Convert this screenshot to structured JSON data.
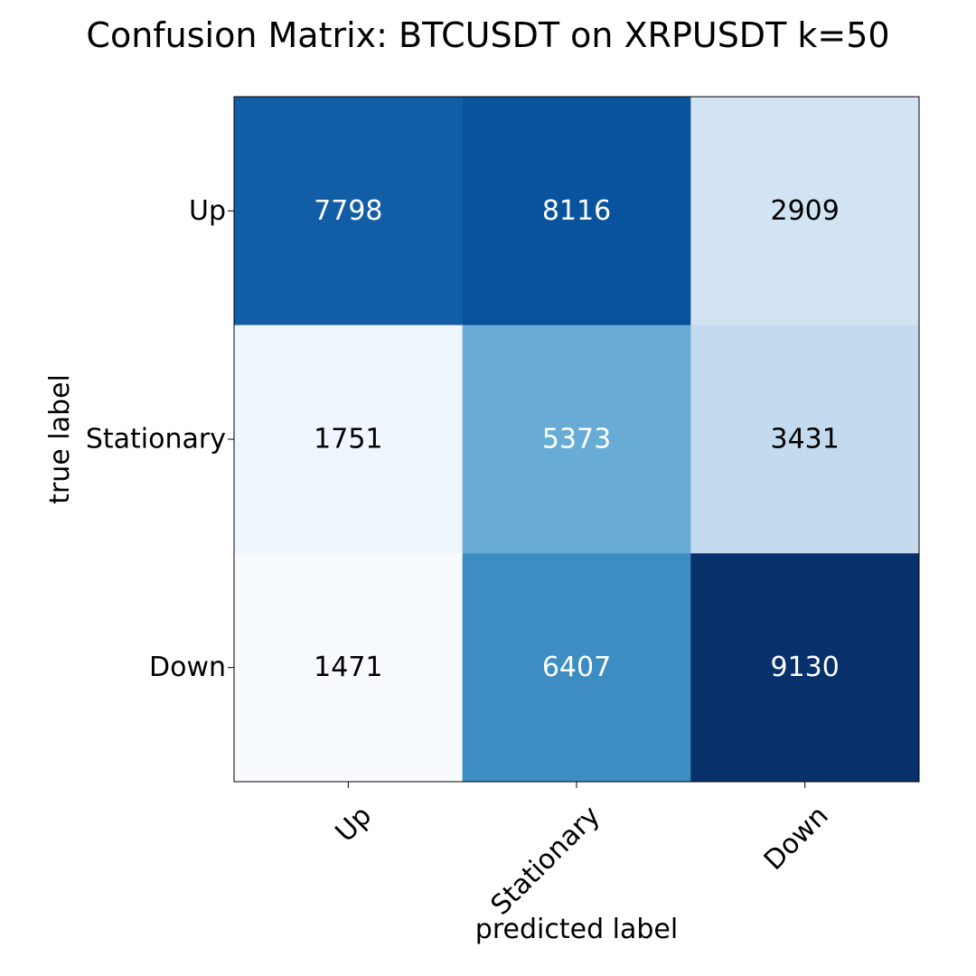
{
  "chart_data": {
    "type": "heatmap",
    "title": "Confusion Matrix: BTCUSDT on XRPUSDT k=50",
    "xlabel": "predicted label",
    "ylabel": "true label",
    "x_categories": [
      "Up",
      "Stationary",
      "Down"
    ],
    "y_categories": [
      "Up",
      "Stationary",
      "Down"
    ],
    "values": [
      [
        7798,
        8116,
        2909
      ],
      [
        1751,
        5373,
        3431
      ],
      [
        1471,
        6407,
        9130
      ]
    ],
    "colormap": "Blues",
    "value_range": [
      1471,
      9130
    ],
    "grid": false,
    "legend": false
  }
}
